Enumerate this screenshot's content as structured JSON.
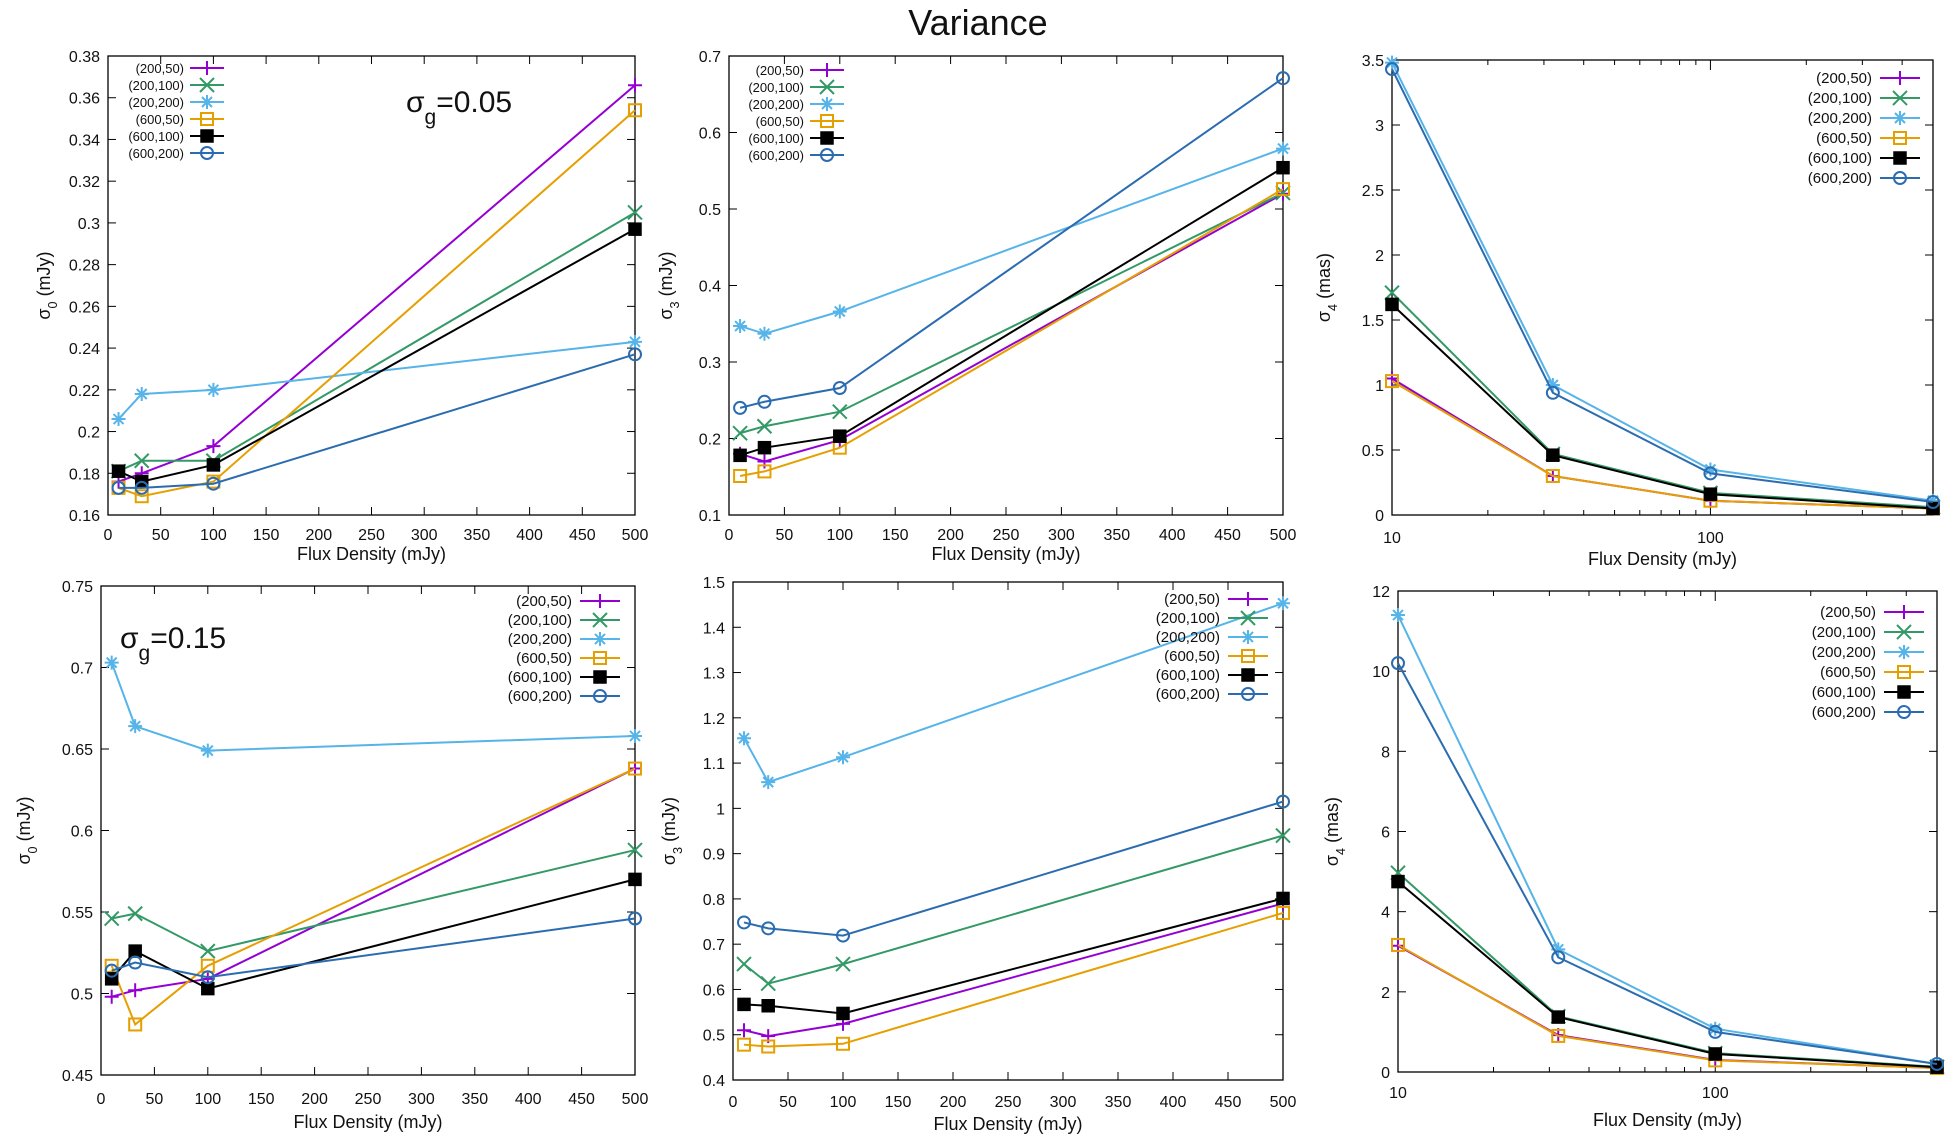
{
  "figure": {
    "title": "Variance"
  },
  "colors": {
    "(200,50)": "#9400d3",
    "(200,100)": "#339966",
    "(200,200)": "#56b4e9",
    "(600,50)": "#e69f00",
    "(600,100)": "#000000",
    "(600,200)": "#2b6cb0"
  },
  "markers": {
    "(200,50)": "plus",
    "(200,100)": "cross",
    "(200,200)": "star",
    "(600,50)": "open-square",
    "(600,100)": "filled-square",
    "(600,200)": "open-circle"
  },
  "chart_data": [
    {
      "type": "line",
      "title": "",
      "annotation": {
        "base": "σ",
        "sub": "g",
        "rest": "=0.05"
      },
      "xlabel": "Flux Density (mJy)",
      "ylabel": {
        "base": "σ",
        "sub": "0",
        "rest": " (mJy)"
      },
      "xscale": "linear",
      "xlim": [
        0,
        500
      ],
      "ylim": [
        0.16,
        0.38
      ],
      "xticks": [
        0,
        50,
        100,
        150,
        200,
        250,
        300,
        350,
        400,
        450,
        500
      ],
      "yticks": [
        0.16,
        0.18,
        0.2,
        0.22,
        0.24,
        0.26,
        0.28,
        0.3,
        0.32,
        0.34,
        0.36,
        0.38
      ],
      "x": [
        10,
        32,
        100,
        500
      ],
      "legend_position": "top-left",
      "series": [
        {
          "name": "(200,50)",
          "values": [
            0.176,
            0.18,
            0.193,
            0.366
          ]
        },
        {
          "name": "(200,100)",
          "values": [
            0.181,
            0.186,
            0.186,
            0.305
          ]
        },
        {
          "name": "(200,200)",
          "values": [
            0.206,
            0.218,
            0.22,
            0.243
          ]
        },
        {
          "name": "(600,50)",
          "values": [
            0.173,
            0.169,
            0.176,
            0.354
          ]
        },
        {
          "name": "(600,100)",
          "values": [
            0.181,
            0.176,
            0.184,
            0.297
          ]
        },
        {
          "name": "(600,200)",
          "values": [
            0.173,
            0.173,
            0.175,
            0.237
          ]
        }
      ]
    },
    {
      "type": "line",
      "title": "Variance",
      "xlabel": "Flux Density (mJy)",
      "ylabel": {
        "base": "σ",
        "sub": "3",
        "rest": " (mJy)"
      },
      "xscale": "linear",
      "xlim": [
        0,
        500
      ],
      "ylim": [
        0.1,
        0.7
      ],
      "xticks": [
        0,
        50,
        100,
        150,
        200,
        250,
        300,
        350,
        400,
        450,
        500
      ],
      "yticks": [
        0.1,
        0.2,
        0.3,
        0.4,
        0.5,
        0.6,
        0.7
      ],
      "x": [
        10,
        32,
        100,
        500
      ],
      "legend_position": "top-left",
      "series": [
        {
          "name": "(200,50)",
          "values": [
            0.18,
            0.17,
            0.198,
            0.52
          ]
        },
        {
          "name": "(200,100)",
          "values": [
            0.207,
            0.216,
            0.235,
            0.521
          ]
        },
        {
          "name": "(200,200)",
          "values": [
            0.347,
            0.337,
            0.366,
            0.579
          ]
        },
        {
          "name": "(600,50)",
          "values": [
            0.151,
            0.157,
            0.188,
            0.526
          ]
        },
        {
          "name": "(600,100)",
          "values": [
            0.178,
            0.188,
            0.203,
            0.554
          ]
        },
        {
          "name": "(600,200)",
          "values": [
            0.24,
            0.248,
            0.266,
            0.671
          ]
        }
      ]
    },
    {
      "type": "line",
      "title": "",
      "xlabel": "Flux Density (mJy)",
      "ylabel": {
        "base": "σ",
        "sub": "4",
        "rest": " (mas)"
      },
      "xscale": "log",
      "xlim": [
        10,
        500
      ],
      "ylim": [
        0,
        3.5
      ],
      "xticks": [
        10,
        100
      ],
      "xticklabels": [
        "10",
        "100"
      ],
      "yticks": [
        0,
        0.5,
        1,
        1.5,
        2,
        2.5,
        3,
        3.5
      ],
      "x": [
        10,
        32,
        100,
        500
      ],
      "legend_position": "top-right",
      "series": [
        {
          "name": "(200,50)",
          "values": [
            1.05,
            0.3,
            0.11,
            0.05
          ]
        },
        {
          "name": "(200,100)",
          "values": [
            1.71,
            0.47,
            0.17,
            0.06
          ]
        },
        {
          "name": "(200,200)",
          "values": [
            3.48,
            1.0,
            0.35,
            0.11
          ]
        },
        {
          "name": "(600,50)",
          "values": [
            1.03,
            0.3,
            0.11,
            0.05
          ]
        },
        {
          "name": "(600,100)",
          "values": [
            1.62,
            0.46,
            0.16,
            0.05
          ]
        },
        {
          "name": "(600,200)",
          "values": [
            3.43,
            0.94,
            0.32,
            0.1
          ]
        }
      ]
    },
    {
      "type": "line",
      "title": "",
      "annotation": {
        "base": "σ",
        "sub": "g",
        "rest": "=0.15"
      },
      "xlabel": "Flux Density (mJy)",
      "ylabel": {
        "base": "σ",
        "sub": "0",
        "rest": " (mJy)"
      },
      "xscale": "linear",
      "xlim": [
        0,
        500
      ],
      "ylim": [
        0.45,
        0.75
      ],
      "xticks": [
        0,
        50,
        100,
        150,
        200,
        250,
        300,
        350,
        400,
        450,
        500
      ],
      "yticks": [
        0.45,
        0.5,
        0.55,
        0.6,
        0.65,
        0.7,
        0.75
      ],
      "x": [
        10,
        32,
        100,
        500
      ],
      "legend_position": "top-right",
      "series": [
        {
          "name": "(200,50)",
          "values": [
            0.498,
            0.502,
            0.509,
            0.638
          ]
        },
        {
          "name": "(200,100)",
          "values": [
            0.546,
            0.549,
            0.526,
            0.588
          ]
        },
        {
          "name": "(200,200)",
          "values": [
            0.703,
            0.664,
            0.649,
            0.658
          ]
        },
        {
          "name": "(600,50)",
          "values": [
            0.517,
            0.481,
            0.517,
            0.638
          ]
        },
        {
          "name": "(600,100)",
          "values": [
            0.509,
            0.526,
            0.503,
            0.57
          ]
        },
        {
          "name": "(600,200)",
          "values": [
            0.514,
            0.519,
            0.51,
            0.546
          ]
        }
      ]
    },
    {
      "type": "line",
      "title": "",
      "xlabel": "Flux Density (mJy)",
      "ylabel": {
        "base": "σ",
        "sub": "3",
        "rest": " (mJy)"
      },
      "xscale": "linear",
      "xlim": [
        0,
        500
      ],
      "ylim": [
        0.4,
        1.5
      ],
      "xticks": [
        0,
        50,
        100,
        150,
        200,
        250,
        300,
        350,
        400,
        450,
        500
      ],
      "yticks": [
        0.4,
        0.5,
        0.6,
        0.7,
        0.8,
        0.9,
        1,
        1.1,
        1.2,
        1.3,
        1.4,
        1.5
      ],
      "x": [
        10,
        32,
        100,
        500
      ],
      "legend_position": "top-right",
      "series": [
        {
          "name": "(200,50)",
          "values": [
            0.51,
            0.497,
            0.524,
            0.79
          ]
        },
        {
          "name": "(200,100)",
          "values": [
            0.656,
            0.613,
            0.656,
            0.94
          ]
        },
        {
          "name": "(200,200)",
          "values": [
            1.155,
            1.058,
            1.113,
            1.453
          ]
        },
        {
          "name": "(600,50)",
          "values": [
            0.478,
            0.474,
            0.48,
            0.769
          ]
        },
        {
          "name": "(600,100)",
          "values": [
            0.567,
            0.564,
            0.547,
            0.801
          ]
        },
        {
          "name": "(600,200)",
          "values": [
            0.748,
            0.735,
            0.719,
            1.015
          ]
        }
      ]
    },
    {
      "type": "line",
      "title": "",
      "xlabel": "Flux Density (mJy)",
      "ylabel": {
        "base": "σ",
        "sub": "4",
        "rest": " (mas)"
      },
      "xscale": "log",
      "xlim": [
        10,
        500
      ],
      "ylim": [
        0,
        12
      ],
      "xticks": [
        10,
        100
      ],
      "xticklabels": [
        "10",
        "100"
      ],
      "yticks": [
        0,
        2,
        4,
        6,
        8,
        10,
        12
      ],
      "x": [
        10,
        32,
        100,
        500
      ],
      "legend_position": "top-right",
      "series": [
        {
          "name": "(200,50)",
          "values": [
            3.15,
            0.92,
            0.3,
            0.1
          ]
        },
        {
          "name": "(200,100)",
          "values": [
            4.97,
            1.39,
            0.47,
            0.13
          ]
        },
        {
          "name": "(200,200)",
          "values": [
            11.4,
            3.06,
            1.08,
            0.2
          ]
        },
        {
          "name": "(600,50)",
          "values": [
            3.17,
            0.9,
            0.29,
            0.1
          ]
        },
        {
          "name": "(600,100)",
          "values": [
            4.75,
            1.37,
            0.45,
            0.12
          ]
        },
        {
          "name": "(600,200)",
          "values": [
            10.2,
            2.86,
            1.0,
            0.2
          ]
        }
      ]
    }
  ]
}
